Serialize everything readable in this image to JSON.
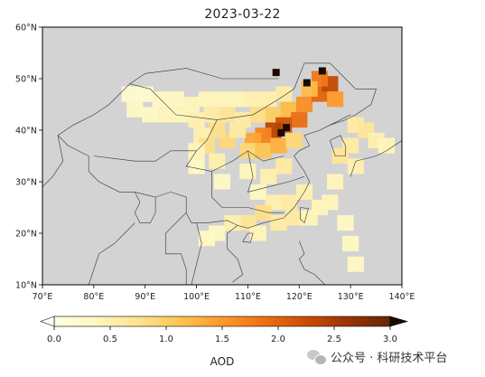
{
  "title": "2023-03-22",
  "map": {
    "lon_range": [
      70,
      140
    ],
    "lat_range": [
      10,
      60
    ],
    "background_color": "#d3d3d3",
    "lon_ticks": [
      "70°E",
      "80°E",
      "90°E",
      "100°E",
      "110°E",
      "120°E",
      "130°E",
      "140°E"
    ],
    "lat_ticks": [
      "10°N",
      "20°N",
      "30°N",
      "40°N",
      "50°N",
      "60°N"
    ],
    "variable": "AOD",
    "aod_cells": [
      {
        "lon": 87,
        "lat": 47,
        "aod": 0.2
      },
      {
        "lon": 90,
        "lat": 47,
        "aod": 0.2
      },
      {
        "lon": 93,
        "lat": 46,
        "aod": 0.3
      },
      {
        "lon": 96,
        "lat": 46,
        "aod": 0.3
      },
      {
        "lon": 99,
        "lat": 45,
        "aod": 0.4
      },
      {
        "lon": 102,
        "lat": 46,
        "aod": 0.4
      },
      {
        "lon": 105,
        "lat": 46,
        "aod": 0.4
      },
      {
        "lon": 108,
        "lat": 46,
        "aod": 0.4
      },
      {
        "lon": 111,
        "lat": 46,
        "aod": 0.5
      },
      {
        "lon": 114,
        "lat": 46,
        "aod": 0.5
      },
      {
        "lon": 117,
        "lat": 47,
        "aod": 0.6
      },
      {
        "lon": 88,
        "lat": 44,
        "aod": 0.3
      },
      {
        "lon": 91,
        "lat": 43,
        "aod": 0.3
      },
      {
        "lon": 94,
        "lat": 43,
        "aod": 0.4
      },
      {
        "lon": 97,
        "lat": 43,
        "aod": 0.4
      },
      {
        "lon": 100,
        "lat": 42,
        "aod": 0.5
      },
      {
        "lon": 103,
        "lat": 43,
        "aod": 0.6
      },
      {
        "lon": 106,
        "lat": 43,
        "aod": 0.7
      },
      {
        "lon": 109,
        "lat": 42,
        "aod": 0.6
      },
      {
        "lon": 112,
        "lat": 43,
        "aod": 0.8
      },
      {
        "lon": 115,
        "lat": 43,
        "aod": 1.0
      },
      {
        "lon": 118,
        "lat": 44,
        "aod": 1.2
      },
      {
        "lon": 121,
        "lat": 45,
        "aod": 1.6
      },
      {
        "lon": 124,
        "lat": 47,
        "aod": 2.0
      },
      {
        "lon": 126,
        "lat": 49,
        "aod": 2.3
      },
      {
        "lon": 124,
        "lat": 50,
        "aod": 1.8
      },
      {
        "lon": 127,
        "lat": 46,
        "aod": 1.5
      },
      {
        "lon": 122,
        "lat": 48,
        "aod": 1.2
      },
      {
        "lon": 120,
        "lat": 42,
        "aod": 1.9
      },
      {
        "lon": 117,
        "lat": 41,
        "aod": 2.2
      },
      {
        "lon": 115,
        "lat": 40,
        "aod": 2.4
      },
      {
        "lon": 113,
        "lat": 39,
        "aod": 1.7
      },
      {
        "lon": 111,
        "lat": 38,
        "aod": 1.4
      },
      {
        "lon": 106,
        "lat": 38,
        "aod": 0.9
      },
      {
        "lon": 104,
        "lat": 40,
        "aod": 0.8
      },
      {
        "lon": 101,
        "lat": 39,
        "aod": 0.5
      },
      {
        "lon": 108,
        "lat": 40,
        "aod": 0.6
      },
      {
        "lon": 110,
        "lat": 36,
        "aod": 0.9
      },
      {
        "lon": 113,
        "lat": 36,
        "aod": 1.1
      },
      {
        "lon": 116,
        "lat": 37,
        "aod": 1.3
      },
      {
        "lon": 119,
        "lat": 38,
        "aod": 0.9
      },
      {
        "lon": 102,
        "lat": 37,
        "aod": 0.8
      },
      {
        "lon": 100,
        "lat": 36,
        "aod": 0.4
      },
      {
        "lon": 131,
        "lat": 41,
        "aod": 0.6
      },
      {
        "lon": 133,
        "lat": 40,
        "aod": 0.7
      },
      {
        "lon": 135,
        "lat": 38,
        "aod": 0.5
      },
      {
        "lon": 137,
        "lat": 37,
        "aod": 0.4
      },
      {
        "lon": 130,
        "lat": 37,
        "aod": 0.6
      },
      {
        "lon": 128,
        "lat": 35,
        "aod": 0.7
      },
      {
        "lon": 131,
        "lat": 33,
        "aod": 0.5
      },
      {
        "lon": 127,
        "lat": 30,
        "aod": 0.4
      },
      {
        "lon": 126,
        "lat": 26,
        "aod": 0.4
      },
      {
        "lon": 129,
        "lat": 22,
        "aod": 0.3
      },
      {
        "lon": 130,
        "lat": 18,
        "aod": 0.3
      },
      {
        "lon": 131,
        "lat": 14,
        "aod": 0.3
      },
      {
        "lon": 112,
        "lat": 28,
        "aod": 0.3
      },
      {
        "lon": 115,
        "lat": 26,
        "aod": 0.5
      },
      {
        "lon": 118,
        "lat": 26,
        "aod": 0.6
      },
      {
        "lon": 121,
        "lat": 28,
        "aod": 0.5
      },
      {
        "lon": 113,
        "lat": 24,
        "aod": 0.8
      },
      {
        "lon": 110,
        "lat": 22,
        "aod": 0.7
      },
      {
        "lon": 107,
        "lat": 22,
        "aod": 0.5
      },
      {
        "lon": 104,
        "lat": 20,
        "aod": 0.3
      },
      {
        "lon": 102,
        "lat": 19,
        "aod": 0.3
      },
      {
        "lon": 116,
        "lat": 22,
        "aod": 0.6
      },
      {
        "lon": 119,
        "lat": 23,
        "aod": 0.6
      },
      {
        "lon": 122,
        "lat": 23,
        "aod": 0.4
      },
      {
        "lon": 124,
        "lat": 25,
        "aod": 0.4
      },
      {
        "lon": 112,
        "lat": 20,
        "aod": 0.4
      },
      {
        "lon": 100,
        "lat": 33,
        "aod": 0.3
      },
      {
        "lon": 105,
        "lat": 30,
        "aod": 0.3
      },
      {
        "lon": 104,
        "lat": 34,
        "aod": 0.5
      },
      {
        "lon": 110,
        "lat": 32,
        "aod": 0.4
      },
      {
        "lon": 117,
        "lat": 33,
        "aod": 0.6
      },
      {
        "lon": 114,
        "lat": 31,
        "aod": 0.5
      }
    ],
    "hotspots_black": [
      {
        "lon": 117.5,
        "lat": 40.5
      },
      {
        "lon": 121.5,
        "lat": 49.2
      },
      {
        "lon": 115.5,
        "lat": 51.2
      },
      {
        "lon": 116.5,
        "lat": 39.5
      },
      {
        "lon": 124.5,
        "lat": 51.5
      }
    ]
  },
  "colorbar": {
    "label": "AOD",
    "min": 0,
    "max": 3,
    "ticks": [
      "0.0",
      "0.5",
      "1.0",
      "1.5",
      "2.0",
      "2.5",
      "3.0"
    ],
    "tick_values": [
      0,
      0.5,
      1.0,
      1.5,
      2.0,
      2.5,
      3.0
    ],
    "colors": [
      "#ffffe5",
      "#fff7bc",
      "#fee391",
      "#fec44f",
      "#fe9929",
      "#ec7014",
      "#cc4c02",
      "#993404",
      "#662506"
    ],
    "over_color": "#1a0a00",
    "under_color": "#ffffff"
  },
  "watermark": {
    "text": "公众号 · 科研技术平台"
  }
}
